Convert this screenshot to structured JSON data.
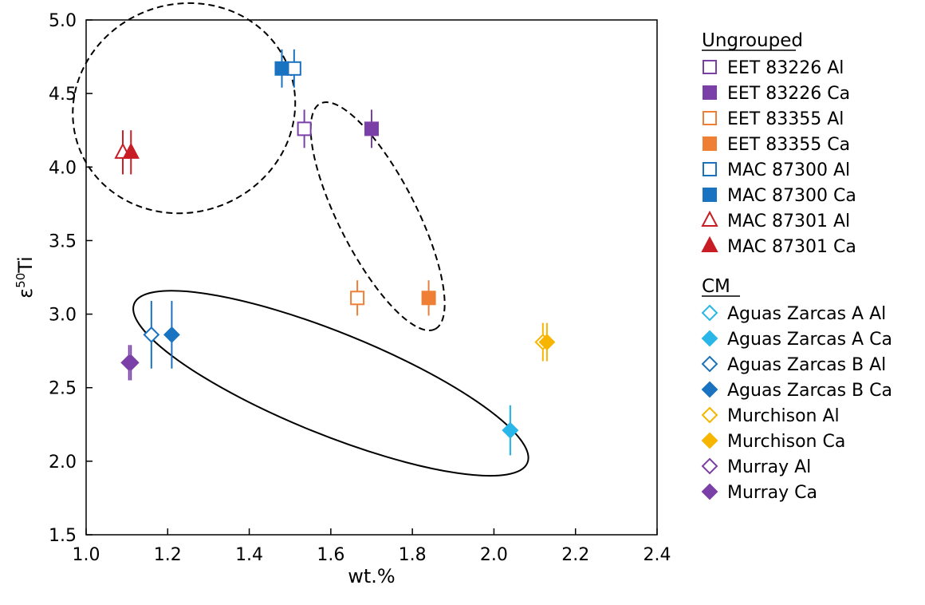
{
  "chart_data": {
    "type": "scatter",
    "xlabel": "wt.%",
    "ylabel_base": "ε",
    "ylabel_sup": "50",
    "ylabel_tail": "Ti",
    "xlim": [
      1.0,
      2.4
    ],
    "ylim": [
      1.5,
      5.0
    ],
    "x_ticks": [
      "1.0",
      "1.2",
      "1.4",
      "1.6",
      "1.8",
      "2.0",
      "2.2",
      "2.4"
    ],
    "y_ticks": [
      "1.5",
      "2.0",
      "2.5",
      "3.0",
      "3.5",
      "4.0",
      "4.5",
      "5.0"
    ],
    "grid": false,
    "legend_position": "right",
    "legend_groups": [
      {
        "heading": "Ungrouped",
        "series": [
          {
            "name": "EET 83226 Al",
            "marker": "square",
            "filled": false,
            "color": "#7b3fa8",
            "x": 1.535,
            "y": 4.26,
            "err": 0.13
          },
          {
            "name": "EET 83226 Ca",
            "marker": "square",
            "filled": true,
            "color": "#7b3fa8",
            "x": 1.7,
            "y": 4.26,
            "err": 0.13
          },
          {
            "name": "EET 83355 Al",
            "marker": "square",
            "filled": false,
            "color": "#ef7f34",
            "x": 1.665,
            "y": 3.11,
            "err": 0.12
          },
          {
            "name": "EET 83355 Ca",
            "marker": "square",
            "filled": true,
            "color": "#ef7f34",
            "x": 1.84,
            "y": 3.11,
            "err": 0.12
          },
          {
            "name": "MAC 87300 Al",
            "marker": "square",
            "filled": false,
            "color": "#1a73c0",
            "x": 1.51,
            "y": 4.67,
            "err": 0.13
          },
          {
            "name": "MAC 87300 Ca",
            "marker": "square",
            "filled": true,
            "color": "#1a73c0",
            "x": 1.48,
            "y": 4.67,
            "err": 0.13
          },
          {
            "name": "MAC 87301 Al",
            "marker": "triangle",
            "filled": false,
            "color": "#c81d25",
            "x": 1.09,
            "y": 4.1,
            "err": 0.15
          },
          {
            "name": "MAC 87301 Ca",
            "marker": "triangle",
            "filled": true,
            "color": "#c81d25",
            "x": 1.11,
            "y": 4.1,
            "err": 0.15
          }
        ]
      },
      {
        "heading": "CM",
        "series": [
          {
            "name": "Aguas Zarcas A Al",
            "marker": "diamond",
            "filled": false,
            "color": "#29b6e8",
            "x": 2.04,
            "y": 2.21,
            "err": 0.17
          },
          {
            "name": "Aguas Zarcas A Ca",
            "marker": "diamond",
            "filled": true,
            "color": "#29b6e8",
            "x": 2.04,
            "y": 2.21,
            "err": 0.17
          },
          {
            "name": "Aguas Zarcas B Al",
            "marker": "diamond",
            "filled": false,
            "color": "#1a73c0",
            "x": 1.16,
            "y": 2.86,
            "err": 0.23
          },
          {
            "name": "Aguas Zarcas B Ca",
            "marker": "diamond",
            "filled": true,
            "color": "#1a73c0",
            "x": 1.21,
            "y": 2.86,
            "err": 0.23
          },
          {
            "name": "Murchison Al",
            "marker": "diamond",
            "filled": false,
            "color": "#f7b500",
            "x": 2.12,
            "y": 2.81,
            "err": 0.13
          },
          {
            "name": "Murchison Ca",
            "marker": "diamond",
            "filled": true,
            "color": "#f7b500",
            "x": 2.13,
            "y": 2.81,
            "err": 0.13
          },
          {
            "name": "Murray Al",
            "marker": "diamond",
            "filled": false,
            "color": "#7b3fa8",
            "x": 1.105,
            "y": 2.67,
            "err": 0.12
          },
          {
            "name": "Murray Ca",
            "marker": "diamond",
            "filled": true,
            "color": "#7b3fa8",
            "x": 1.11,
            "y": 2.67,
            "err": 0.12
          }
        ]
      }
    ],
    "ellipses": [
      {
        "cx": 1.24,
        "cy": 4.4,
        "rx": 0.275,
        "ry": 0.255,
        "rotation_deg": -20,
        "style": "dashed"
      },
      {
        "cx": 1.715,
        "cy": 3.665,
        "rx": 0.31,
        "ry": 0.095,
        "rotation_deg": 63,
        "style": "dashed"
      },
      {
        "cx": 1.6,
        "cy": 2.53,
        "rx": 0.52,
        "ry": 0.125,
        "rotation_deg": 22,
        "style": "solid"
      }
    ]
  }
}
